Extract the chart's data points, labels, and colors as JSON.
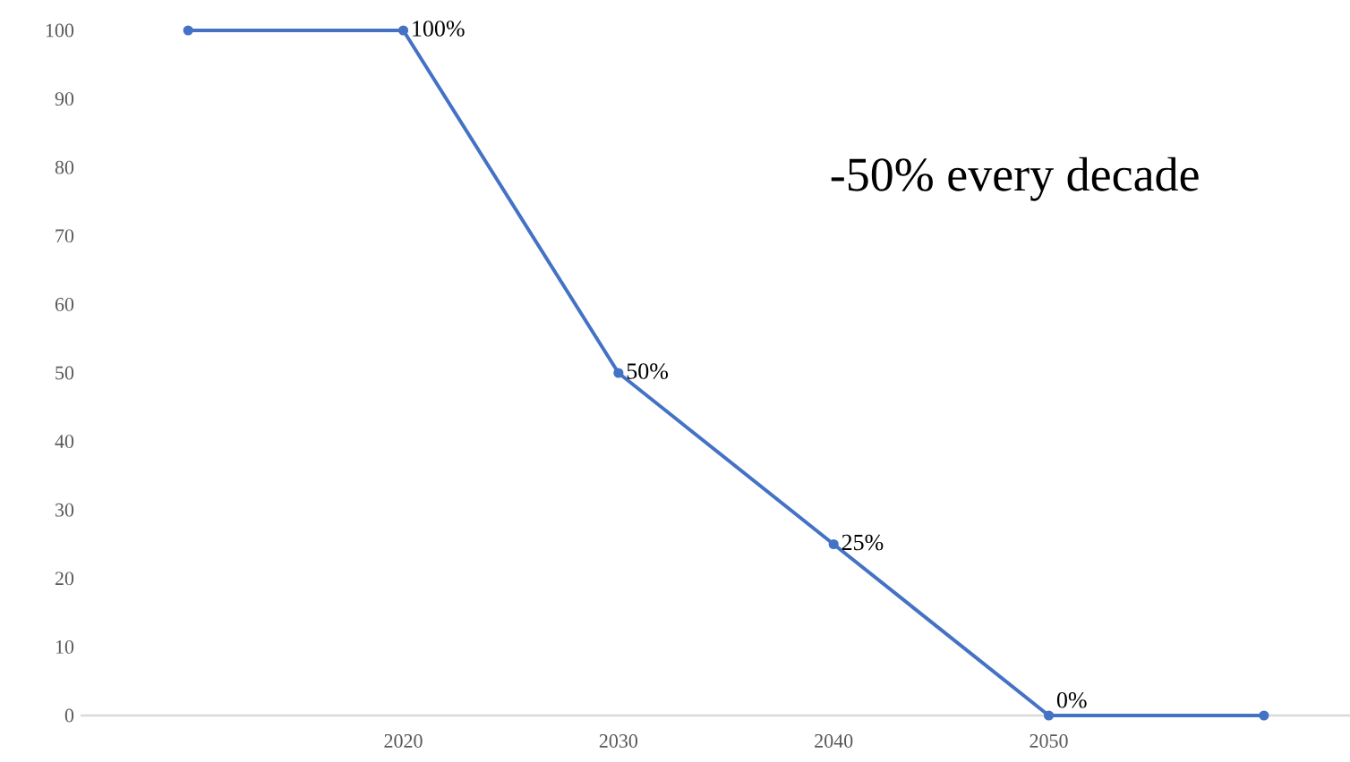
{
  "chart_data": {
    "type": "line",
    "categories": [
      null,
      "2020",
      "2030",
      "2040",
      "2050",
      null
    ],
    "values": [
      100,
      100,
      50,
      25,
      0,
      0
    ],
    "value_labels": [
      null,
      "100%",
      "50%",
      "25%",
      "0%",
      null
    ],
    "color": "#4472c4",
    "marker": "circle",
    "ylim": [
      0,
      100
    ],
    "yticks": [
      0,
      10,
      20,
      30,
      40,
      50,
      60,
      70,
      80,
      90,
      100
    ],
    "annotations": [
      "-50% every decade"
    ]
  }
}
